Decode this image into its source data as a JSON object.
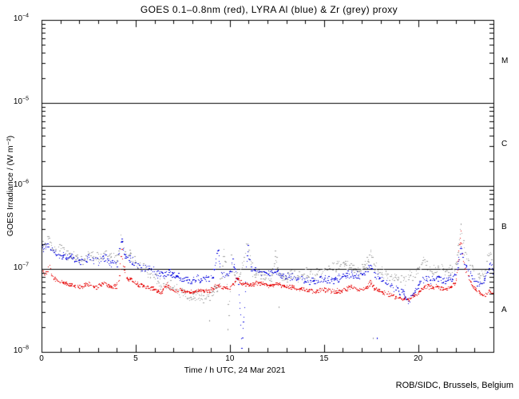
{
  "chart_data": {
    "type": "scatter",
    "title": "GOES 0.1–0.8nm (red), LYRA Al (blue) & Zr (grey) proxy",
    "xlabel": "Time / h UTC, 24 Mar 2021",
    "ylabel": "GOES Irradiance / (W m⁻²)",
    "credit": "ROB/SIDC, Brussels, Belgium",
    "x_range": [
      0,
      24
    ],
    "x_major_ticks": [
      0,
      5,
      10,
      15,
      20
    ],
    "x_minor_step_hours": 1,
    "y_scale": "log",
    "y_range_wm2": [
      1e-08,
      0.0001
    ],
    "y_tick_exponents": [
      -4,
      -5,
      -6,
      -7,
      -8
    ],
    "grid": "off",
    "legend": "encoded in title colors",
    "goes_class_boundary_lines_wm2": [
      1e-05,
      1e-06,
      1e-07
    ],
    "goes_class_labels": [
      {
        "label": "M",
        "value_wm2": 3.16e-05
      },
      {
        "label": "C",
        "value_wm2": 3.16e-06
      },
      {
        "label": "B",
        "value_wm2": 3.16e-07
      },
      {
        "label": "A",
        "value_wm2": 3.16e-08
      }
    ],
    "series_value_scale_wm2": 1e-09,
    "series": [
      {
        "name": "GOES 0.1-0.8nm",
        "color": "#e60000",
        "band_decades": 0.035,
        "density": 0.85,
        "points": [
          [
            0,
            90
          ],
          [
            0.15,
            88
          ],
          [
            0.3,
            98
          ],
          [
            0.38,
            135
          ],
          [
            0.5,
            86
          ],
          [
            0.7,
            76
          ],
          [
            1,
            70
          ],
          [
            1.4,
            66
          ],
          [
            1.8,
            62
          ],
          [
            2.1,
            60
          ],
          [
            2.4,
            68
          ],
          [
            2.7,
            62
          ],
          [
            3,
            62
          ],
          [
            3.3,
            70
          ],
          [
            3.6,
            60
          ],
          [
            3.9,
            63
          ],
          [
            4.1,
            70
          ],
          [
            4.22,
            170
          ],
          [
            4.35,
            100
          ],
          [
            4.5,
            78
          ],
          [
            4.8,
            72
          ],
          [
            5.1,
            66
          ],
          [
            5.4,
            63
          ],
          [
            5.7,
            60
          ],
          [
            6,
            55
          ],
          [
            6.3,
            52
          ],
          [
            6.6,
            66
          ],
          [
            6.9,
            56
          ],
          [
            7.2,
            54
          ],
          [
            7.5,
            56
          ],
          [
            7.8,
            52
          ],
          [
            8.1,
            54
          ],
          [
            8.4,
            56
          ],
          [
            8.7,
            54
          ],
          [
            9,
            56
          ],
          [
            9.3,
            64
          ],
          [
            9.5,
            60
          ],
          [
            9.8,
            58
          ],
          [
            10.1,
            62
          ],
          [
            10.35,
            80
          ],
          [
            10.6,
            68
          ],
          [
            10.9,
            66
          ],
          [
            11.2,
            66
          ],
          [
            11.5,
            70
          ],
          [
            11.8,
            66
          ],
          [
            12.1,
            64
          ],
          [
            12.5,
            66
          ],
          [
            12.9,
            62
          ],
          [
            13.3,
            60
          ],
          [
            13.7,
            58
          ],
          [
            14.1,
            56
          ],
          [
            14.5,
            54
          ],
          [
            15,
            56
          ],
          [
            15.5,
            54
          ],
          [
            16,
            56
          ],
          [
            16.4,
            60
          ],
          [
            16.8,
            56
          ],
          [
            17.2,
            58
          ],
          [
            17.45,
            70
          ],
          [
            17.7,
            58
          ],
          [
            18,
            54
          ],
          [
            18.4,
            50
          ],
          [
            18.8,
            46
          ],
          [
            19.2,
            44
          ],
          [
            19.5,
            44
          ],
          [
            19.8,
            48
          ],
          [
            20.1,
            56
          ],
          [
            20.4,
            64
          ],
          [
            20.7,
            60
          ],
          [
            21,
            62
          ],
          [
            21.3,
            56
          ],
          [
            21.6,
            60
          ],
          [
            22,
            68
          ],
          [
            22.25,
            280
          ],
          [
            22.4,
            120
          ],
          [
            22.6,
            85
          ],
          [
            22.9,
            60
          ],
          [
            23.2,
            52
          ],
          [
            23.45,
            48
          ],
          [
            23.6,
            50
          ],
          [
            23.75,
            56
          ],
          [
            23.9,
            50
          ],
          [
            24,
            52
          ]
        ]
      },
      {
        "name": "LYRA Al proxy",
        "color": "#0000dd",
        "band_decades": 0.06,
        "density": 0.72,
        "points": [
          [
            0,
            175
          ],
          [
            0.2,
            180
          ],
          [
            0.35,
            210
          ],
          [
            0.5,
            170
          ],
          [
            0.8,
            155
          ],
          [
            1,
            148
          ],
          [
            1.4,
            138
          ],
          [
            1.8,
            130
          ],
          [
            2.1,
            122
          ],
          [
            2.5,
            132
          ],
          [
            2.8,
            125
          ],
          [
            3.1,
            125
          ],
          [
            3.35,
            138
          ],
          [
            3.7,
            120
          ],
          [
            4,
            118
          ],
          [
            4.22,
            225
          ],
          [
            4.4,
            155
          ],
          [
            4.7,
            128
          ],
          [
            5,
            115
          ],
          [
            5.4,
            106
          ],
          [
            5.7,
            102
          ],
          [
            6,
            92
          ],
          [
            6.4,
            86
          ],
          [
            6.8,
            88
          ],
          [
            7.2,
            82
          ],
          [
            7.6,
            74
          ],
          [
            7.9,
            70
          ],
          [
            8.2,
            78
          ],
          [
            8.5,
            74
          ],
          [
            8.8,
            80
          ],
          [
            9.1,
            84
          ],
          [
            9.35,
            175
          ],
          [
            9.5,
            95
          ],
          [
            9.7,
            88
          ],
          [
            9.9,
            85
          ],
          [
            10.05,
            100
          ],
          [
            10.12,
            135
          ],
          [
            10.3,
            90
          ],
          [
            10.45,
            65
          ],
          [
            10.55,
            28
          ],
          [
            10.62,
            12
          ],
          [
            10.7,
            22
          ],
          [
            10.78,
            45
          ],
          [
            10.88,
            120
          ],
          [
            10.95,
            175
          ],
          [
            11.1,
            105
          ],
          [
            11.4,
            95
          ],
          [
            11.7,
            90
          ],
          [
            12,
            88
          ],
          [
            12.4,
            95
          ],
          [
            12.8,
            82
          ],
          [
            13.2,
            80
          ],
          [
            13.6,
            76
          ],
          [
            14,
            74
          ],
          [
            14.5,
            72
          ],
          [
            15,
            75
          ],
          [
            15.5,
            73
          ],
          [
            16,
            83
          ],
          [
            16.3,
            88
          ],
          [
            16.6,
            82
          ],
          [
            17,
            86
          ],
          [
            17.45,
            110
          ],
          [
            17.7,
            86
          ],
          [
            18,
            76
          ],
          [
            18.4,
            66
          ],
          [
            18.8,
            58
          ],
          [
            19.2,
            50
          ],
          [
            19.5,
            40
          ],
          [
            19.8,
            54
          ],
          [
            20.1,
            68
          ],
          [
            20.35,
            80
          ],
          [
            20.6,
            74
          ],
          [
            21,
            78
          ],
          [
            21.3,
            70
          ],
          [
            21.6,
            76
          ],
          [
            22,
            88
          ],
          [
            22.25,
            180
          ],
          [
            22.45,
            110
          ],
          [
            22.8,
            85
          ],
          [
            23.1,
            70
          ],
          [
            23.4,
            64
          ],
          [
            23.65,
            88
          ],
          [
            23.85,
            120
          ],
          [
            24,
            85
          ]
        ]
      },
      {
        "name": "LYRA Zr proxy",
        "color": "#9e9e9e",
        "band_decades": 0.085,
        "density": 0.68,
        "points": [
          [
            0,
            195
          ],
          [
            0.2,
            200
          ],
          [
            0.35,
            240
          ],
          [
            0.5,
            190
          ],
          [
            0.8,
            175
          ],
          [
            1,
            165
          ],
          [
            1.3,
            155
          ],
          [
            1.6,
            145
          ],
          [
            2,
            132
          ],
          [
            2.2,
            128
          ],
          [
            2.5,
            150
          ],
          [
            2.7,
            138
          ],
          [
            3,
            138
          ],
          [
            3.3,
            158
          ],
          [
            3.6,
            133
          ],
          [
            3.9,
            131
          ],
          [
            4.1,
            145
          ],
          [
            4.22,
            260
          ],
          [
            4.4,
            180
          ],
          [
            4.6,
            150
          ],
          [
            4.9,
            130
          ],
          [
            5.2,
            112
          ],
          [
            5.5,
            95
          ],
          [
            5.8,
            85
          ],
          [
            6.1,
            73
          ],
          [
            6.5,
            65
          ],
          [
            6.9,
            62
          ],
          [
            7.2,
            56
          ],
          [
            7.5,
            52
          ],
          [
            7.9,
            42
          ],
          [
            8.2,
            48
          ],
          [
            8.5,
            44
          ],
          [
            8.8,
            46
          ],
          [
            9.1,
            52
          ],
          [
            9.4,
            65
          ],
          [
            9.55,
            85
          ],
          [
            9.68,
            200
          ],
          [
            9.78,
            90
          ],
          [
            9.88,
            35
          ],
          [
            9.95,
            25
          ],
          [
            10.05,
            140
          ],
          [
            10.15,
            90
          ],
          [
            10.3,
            75
          ],
          [
            10.5,
            85
          ],
          [
            10.7,
            110
          ],
          [
            10.88,
            210
          ],
          [
            11.05,
            140
          ],
          [
            11.2,
            95
          ],
          [
            11.4,
            85
          ],
          [
            11.6,
            88
          ],
          [
            11.9,
            82
          ],
          [
            12.2,
            80
          ],
          [
            12.4,
            145
          ],
          [
            12.6,
            80
          ],
          [
            13,
            76
          ],
          [
            13.3,
            86
          ],
          [
            13.6,
            80
          ],
          [
            14,
            90
          ],
          [
            14.3,
            96
          ],
          [
            14.6,
            88
          ],
          [
            15,
            94
          ],
          [
            15.4,
            105
          ],
          [
            15.8,
            110
          ],
          [
            16.15,
            120
          ],
          [
            16.5,
            100
          ],
          [
            16.8,
            95
          ],
          [
            17.1,
            100
          ],
          [
            17.45,
            160
          ],
          [
            17.7,
            105
          ],
          [
            18,
            95
          ],
          [
            18.4,
            86
          ],
          [
            18.8,
            78
          ],
          [
            19.2,
            74
          ],
          [
            19.6,
            80
          ],
          [
            20,
            92
          ],
          [
            20.25,
            135
          ],
          [
            20.5,
            105
          ],
          [
            20.8,
            95
          ],
          [
            21.2,
            100
          ],
          [
            21.5,
            90
          ],
          [
            21.8,
            100
          ],
          [
            22,
            110
          ],
          [
            22.25,
            340
          ],
          [
            22.45,
            160
          ],
          [
            22.7,
            120
          ],
          [
            23,
            90
          ],
          [
            23.3,
            80
          ],
          [
            23.5,
            90
          ],
          [
            23.75,
            175
          ],
          [
            23.9,
            130
          ],
          [
            24,
            120
          ]
        ]
      }
    ],
    "outlier_points": [
      {
        "series": "LYRA Zr proxy",
        "h": 8.9,
        "v": 24
      },
      {
        "series": "LYRA Zr proxy",
        "h": 9.9,
        "v": 19
      },
      {
        "series": "LYRA Zr proxy",
        "h": 12.6,
        "v": 35
      },
      {
        "series": "LYRA Zr proxy",
        "h": 17.6,
        "v": 15
      },
      {
        "series": "LYRA Al proxy",
        "h": 17.8,
        "v": 15
      }
    ]
  }
}
